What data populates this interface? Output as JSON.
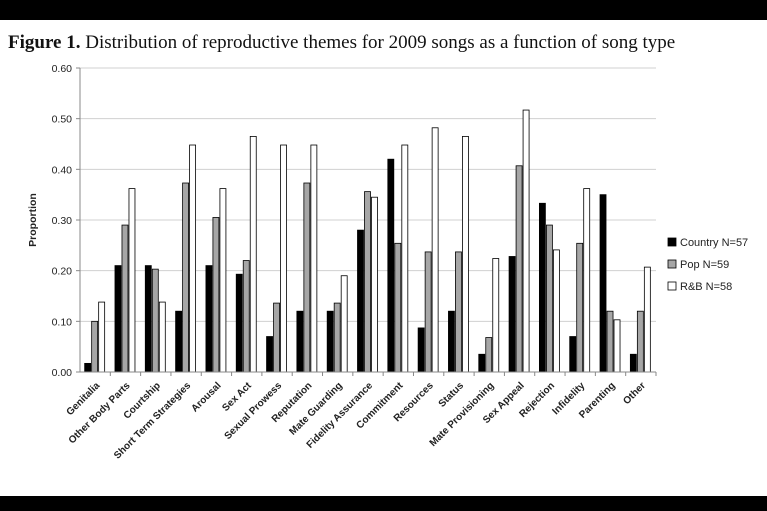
{
  "figure": {
    "label": "Figure 1.",
    "caption": "Distribution of reproductive themes for 2009 songs as a function of song type"
  },
  "chart_data": {
    "type": "bar",
    "ylabel": "Proportion",
    "xlabel": "",
    "ylim": [
      0,
      0.6
    ],
    "yticks": [
      "0.00",
      "0.10",
      "0.20",
      "0.30",
      "0.40",
      "0.50",
      "0.60"
    ],
    "grid": "horizontal",
    "legend_position": "right",
    "categories": [
      "Genitalia",
      "Other Body Parts",
      "Courtship",
      "Short Term Strategies",
      "Arousal",
      "Sex Act",
      "Sexual Prowess",
      "Reputation",
      "Mate Guarding",
      "Fidelity Assurance",
      "Commitment",
      "Resources",
      "Status",
      "Mate Provisioning",
      "Sex Appeal",
      "Rejection",
      "Infidelity",
      "Parenting",
      "Other"
    ],
    "series": [
      {
        "name": "Country N=57",
        "color": "#000000",
        "values": [
          0.017,
          0.21,
          0.21,
          0.12,
          0.21,
          0.193,
          0.07,
          0.12,
          0.12,
          0.28,
          0.42,
          0.087,
          0.12,
          0.035,
          0.228,
          0.333,
          0.07,
          0.35,
          0.035
        ]
      },
      {
        "name": "Pop N=59",
        "color": "#a6a6a6",
        "values": [
          0.1,
          0.29,
          0.203,
          0.373,
          0.305,
          0.22,
          0.136,
          0.373,
          0.136,
          0.356,
          0.254,
          0.237,
          0.237,
          0.068,
          0.407,
          0.29,
          0.254,
          0.12,
          0.12
        ]
      },
      {
        "name": "R&B N=58",
        "color": "#ffffff",
        "values": [
          0.138,
          0.362,
          0.138,
          0.448,
          0.362,
          0.465,
          0.448,
          0.448,
          0.19,
          0.345,
          0.448,
          0.482,
          0.465,
          0.224,
          0.517,
          0.241,
          0.362,
          0.103,
          0.207
        ]
      }
    ]
  }
}
